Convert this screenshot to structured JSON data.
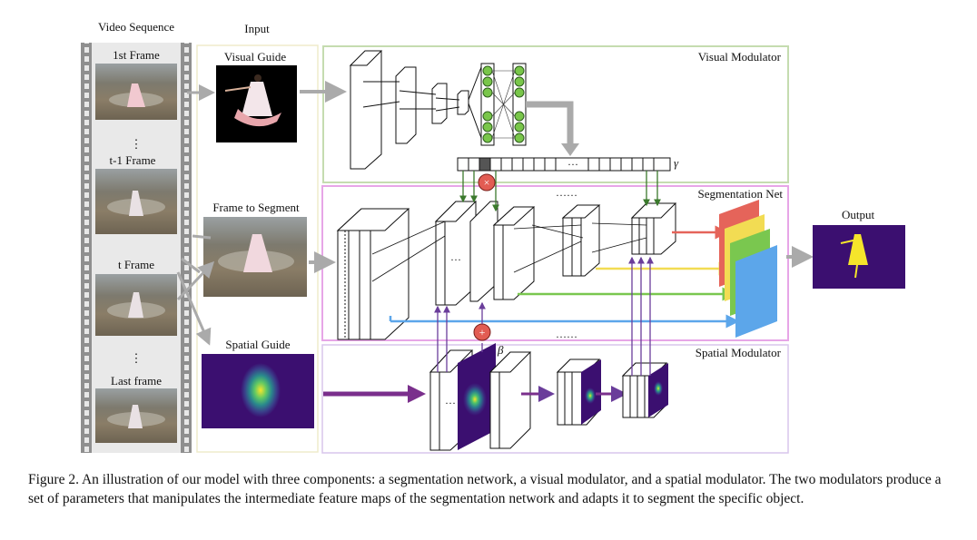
{
  "labels": {
    "video_sequence": "Video Sequence",
    "input": "Input",
    "first_frame": "1st Frame",
    "t_minus_1_frame": "t-1 Frame",
    "t_frame": "t Frame",
    "last_frame": "Last frame",
    "visual_guide": "Visual Guide",
    "frame_to_segment": "Frame to Segment",
    "spatial_guide": "Spatial Guide",
    "visual_modulator": "Visual Modulator",
    "segmentation_net": "Segmentation Net",
    "spatial_modulator": "Spatial Modulator",
    "output": "Output",
    "gamma": "γ",
    "beta": "β",
    "multiply": "×",
    "add": "+",
    "vdots": "⋮",
    "hdots_top": "……",
    "hdots_bottom": "……",
    "hdots_gamma": "···"
  },
  "caption": "Figure 2. An illustration of our model with three components: a segmentation network, a visual modulator, and a spatial modulator. The two modulators produce a set of parameters that manipulates the intermediate feature maps of the segmentation network and adapts it to segment the specific object.",
  "colors": {
    "visual_modulator_border": "#c5dcb0",
    "segmentation_border": "#e7a6e7",
    "spatial_border": "#d9c6ec",
    "input_border": "#efeccb",
    "node_green": "#79c64a",
    "multiply_red": "#e25c53",
    "arrow_red": "#e5645a",
    "arrow_yellow": "#f2dc53",
    "arrow_green": "#7ac74f",
    "arrow_blue": "#5ca6ea",
    "arrow_purple": "#7a2f8c",
    "heatmap_dark": "#3b0f70",
    "heatmap_yellow": "#f5e52b"
  }
}
